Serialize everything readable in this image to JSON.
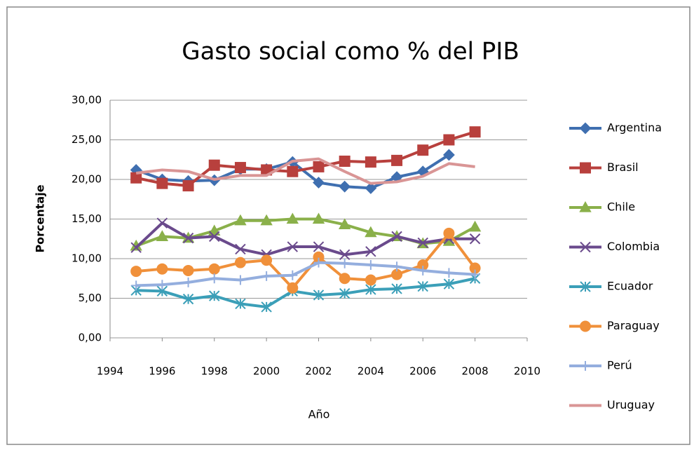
{
  "chart_data": {
    "type": "line",
    "title": "Gasto social como % del PIB",
    "x_label": "Año",
    "y_label": "Porcentaje",
    "x": [
      1995,
      1996,
      1997,
      1998,
      1999,
      2000,
      2001,
      2002,
      2003,
      2004,
      2005,
      2006,
      2007,
      2008
    ],
    "series": [
      {
        "name": "Argentina",
        "color": "#3f6fb0",
        "marker": "diamond",
        "values": [
          21.2,
          20.0,
          19.8,
          19.9,
          21.3,
          21.3,
          22.2,
          19.6,
          19.1,
          18.9,
          20.3,
          21.0,
          23.1,
          null
        ]
      },
      {
        "name": "Brasil",
        "color": "#b8403d",
        "marker": "square",
        "values": [
          20.2,
          19.5,
          19.2,
          21.8,
          21.5,
          21.2,
          21.0,
          21.6,
          22.3,
          22.2,
          22.4,
          23.7,
          25.0,
          26.0
        ]
      },
      {
        "name": "Chile",
        "color": "#8ab04a",
        "marker": "triangle",
        "values": [
          11.6,
          12.8,
          12.6,
          13.5,
          14.8,
          14.8,
          15.0,
          15.0,
          14.3,
          13.3,
          12.8,
          11.9,
          12.2,
          14.0
        ]
      },
      {
        "name": "Colombia",
        "color": "#6a4a8c",
        "marker": "x",
        "values": [
          11.4,
          14.5,
          12.6,
          12.8,
          11.2,
          10.5,
          11.5,
          11.5,
          10.5,
          10.9,
          12.8,
          12.0,
          12.5,
          12.5
        ]
      },
      {
        "name": "Ecuador",
        "color": "#3b9fb8",
        "marker": "star",
        "values": [
          6.0,
          5.9,
          4.9,
          5.3,
          4.3,
          3.9,
          5.9,
          5.4,
          5.6,
          6.1,
          6.2,
          6.5,
          6.8,
          7.5
        ]
      },
      {
        "name": "Paraguay",
        "color": "#f0903a",
        "marker": "circle",
        "values": [
          8.4,
          8.7,
          8.5,
          8.7,
          9.5,
          9.8,
          6.3,
          10.2,
          7.5,
          7.3,
          8.0,
          9.2,
          13.2,
          8.8
        ]
      },
      {
        "name": "Perú",
        "color": "#94aede",
        "marker": "plus",
        "values": [
          6.6,
          6.7,
          7.0,
          7.5,
          7.3,
          7.8,
          7.9,
          9.5,
          9.4,
          9.2,
          9.0,
          8.5,
          8.2,
          8.0
        ]
      },
      {
        "name": "Uruguay",
        "color": "#d99595",
        "marker": "none",
        "values": [
          20.8,
          21.2,
          21.0,
          20.0,
          20.5,
          20.5,
          22.3,
          22.6,
          21.0,
          19.5,
          19.7,
          20.4,
          22.0,
          21.6
        ]
      }
    ],
    "xlim": [
      1994,
      2010
    ],
    "xticks": [
      1994,
      1996,
      1998,
      2000,
      2002,
      2004,
      2006,
      2008,
      2010
    ],
    "ylim": [
      0,
      30
    ],
    "yticks": [
      {
        "value": 0,
        "label": "0,00"
      },
      {
        "value": 5,
        "label": "5,00"
      },
      {
        "value": 10,
        "label": "10,00"
      },
      {
        "value": 15,
        "label": "15,00"
      },
      {
        "value": 20,
        "label": "20,00"
      },
      {
        "value": 25,
        "label": "25,00"
      },
      {
        "value": 30,
        "label": "30,00"
      }
    ],
    "grid": true,
    "legend": "right"
  }
}
